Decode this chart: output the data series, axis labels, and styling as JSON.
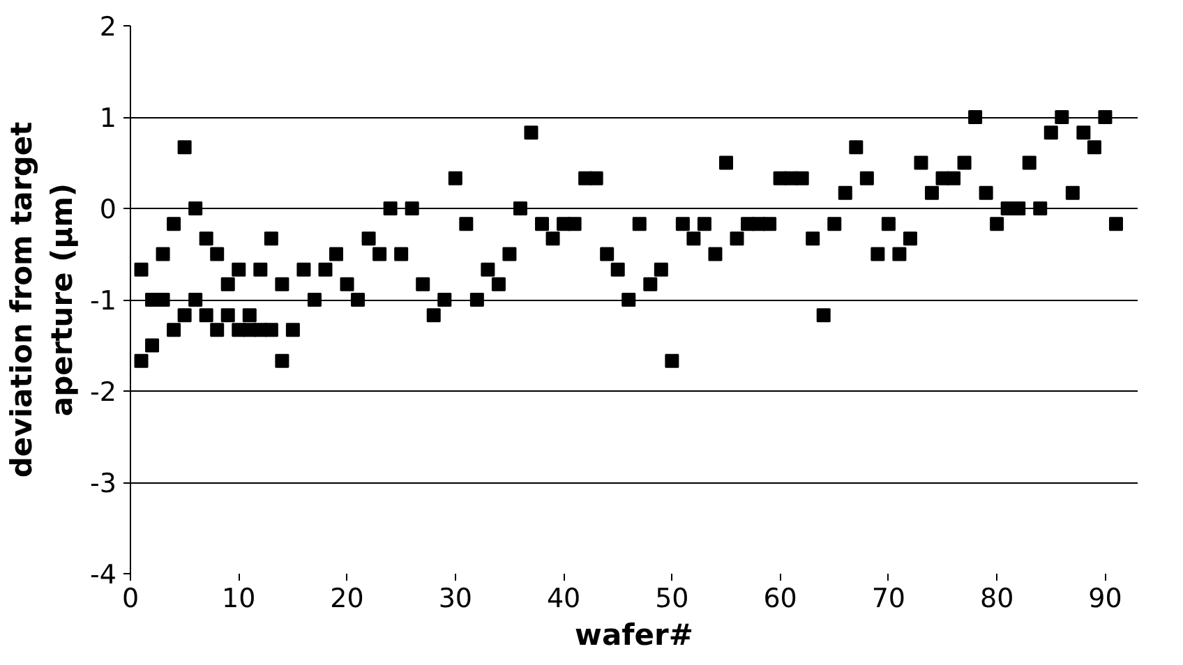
{
  "chart_data": {
    "type": "scatter",
    "xlabel": "wafer#",
    "ylabel": "deviation from target aperture (µm)",
    "xlim": [
      0,
      93
    ],
    "xticks": [
      0,
      10,
      20,
      30,
      40,
      50,
      60,
      70,
      80,
      90
    ],
    "ylim": [
      -4,
      2
    ],
    "yticks": [
      -4,
      -3,
      -2,
      -1,
      0,
      1,
      2
    ],
    "grid": "y",
    "marker": "square",
    "series": [
      {
        "color": "#000000",
        "x": [
          1,
          1,
          2,
          2,
          3,
          3,
          4,
          4,
          5,
          5,
          6,
          6,
          7,
          7,
          8,
          8,
          9,
          9,
          10,
          10,
          11,
          11,
          12,
          12,
          13,
          13,
          14,
          14,
          15,
          16,
          17,
          18,
          19,
          20,
          21,
          22,
          23,
          24,
          25,
          26,
          27,
          28,
          29,
          30,
          31,
          32,
          33,
          34,
          35,
          36,
          37,
          38,
          39,
          40,
          41,
          42,
          43,
          44,
          45,
          46,
          47,
          48,
          49,
          50,
          51,
          52,
          53,
          54,
          55,
          56,
          57,
          58,
          59,
          60,
          61,
          62,
          63,
          64,
          65,
          66,
          67,
          68,
          69,
          70,
          71,
          72,
          73,
          74,
          75,
          76,
          77,
          78,
          79,
          80,
          81,
          82,
          83,
          84,
          85,
          86,
          87,
          88,
          89,
          90,
          91
        ],
        "values": [
          -0.67,
          -1.67,
          -1.5,
          -1.0,
          -1.0,
          -0.5,
          -0.17,
          -1.33,
          0.67,
          -1.17,
          0,
          -1.0,
          -0.33,
          -1.17,
          -0.5,
          -1.33,
          -0.83,
          -1.17,
          -0.67,
          -1.33,
          -1.17,
          -1.33,
          -0.67,
          -1.33,
          -0.33,
          -1.33,
          -0.83,
          -1.67,
          -1.33,
          -0.67,
          -1.0,
          -0.67,
          -0.5,
          -0.83,
          -1.0,
          -0.33,
          -0.5,
          0,
          -0.5,
          0,
          -0.83,
          -1.17,
          -1.0,
          0.33,
          -0.17,
          -1.0,
          -0.67,
          -0.83,
          -0.5,
          0,
          0.83,
          -0.17,
          -0.33,
          -0.17,
          -0.17,
          0.33,
          0.33,
          -0.5,
          -0.67,
          -1.0,
          -0.17,
          -0.83,
          -0.67,
          -1.67,
          -0.17,
          -0.33,
          -0.17,
          -0.5,
          0.5,
          -0.33,
          -0.17,
          -0.17,
          -0.17,
          0.33,
          0.33,
          0.33,
          -0.33,
          -1.17,
          -0.17,
          0.17,
          0.67,
          0.33,
          -0.5,
          -0.17,
          -0.5,
          -0.33,
          0.5,
          0.17,
          0.33,
          0.33,
          0.5,
          1.0,
          0.17,
          -0.17,
          0,
          0,
          0.5,
          0,
          0.83,
          1.0,
          0.17,
          0.83,
          0.67,
          1.0,
          -0.17
        ]
      }
    ]
  }
}
